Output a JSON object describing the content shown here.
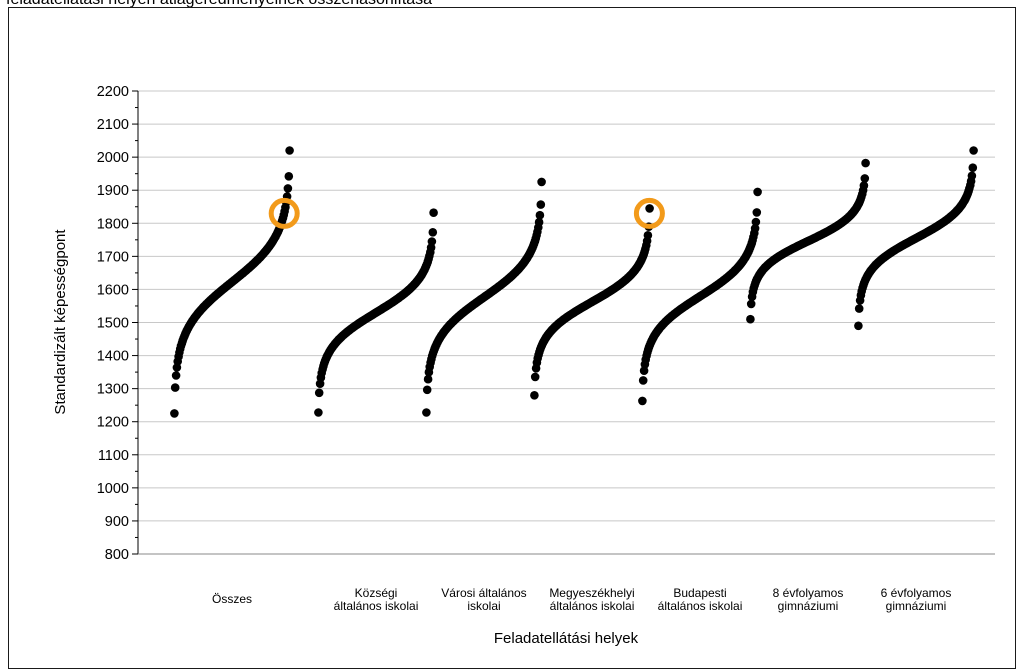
{
  "page": {
    "title": "feladatellátási helyen átlageredményeinek összehasonlítása"
  },
  "colors": {
    "dot": "#000000",
    "highlight": "#f29a1a",
    "grid": "#c8c8c8",
    "axis": "#000000"
  },
  "chart_data": {
    "type": "scatter",
    "title": "",
    "xlabel": "Feladatellátási helyek",
    "ylabel": "Standardizált képességpont",
    "ylim": [
      800,
      2200
    ],
    "y_ticks": [
      "800",
      "900",
      "1000",
      "1100",
      "1200",
      "1300",
      "1400",
      "1500",
      "1600",
      "1700",
      "1800",
      "1900",
      "2000",
      "2100",
      "2200"
    ],
    "grid": "horizontal",
    "legend": "none",
    "categories": [
      {
        "label_lines": [
          "Összes"
        ],
        "min": 1225,
        "max": 2020,
        "shape": "s",
        "highlight": 1830
      },
      {
        "label_lines": [
          "Községi",
          "általános iskolai"
        ],
        "min": 1228,
        "max": 1832,
        "shape": "s"
      },
      {
        "label_lines": [
          "Városi általános",
          "iskolai"
        ],
        "min": 1228,
        "max": 1925,
        "shape": "s"
      },
      {
        "label_lines": [
          "Megyeszékhelyi",
          "általános iskolai"
        ],
        "min": 1280,
        "max": 1845,
        "shape": "s",
        "highlight": 1830
      },
      {
        "label_lines": [
          "Budapesti",
          "általános iskolai"
        ],
        "min": 1263,
        "max": 1895,
        "shape": "s"
      },
      {
        "label_lines": [
          "8 évfolyamos",
          "gimnáziumi"
        ],
        "min": 1510,
        "max": 1982,
        "shape": "s"
      },
      {
        "label_lines": [
          "6 évfolyamos",
          "gimnáziumi"
        ],
        "min": 1490,
        "max": 2020,
        "shape": "s"
      }
    ]
  }
}
